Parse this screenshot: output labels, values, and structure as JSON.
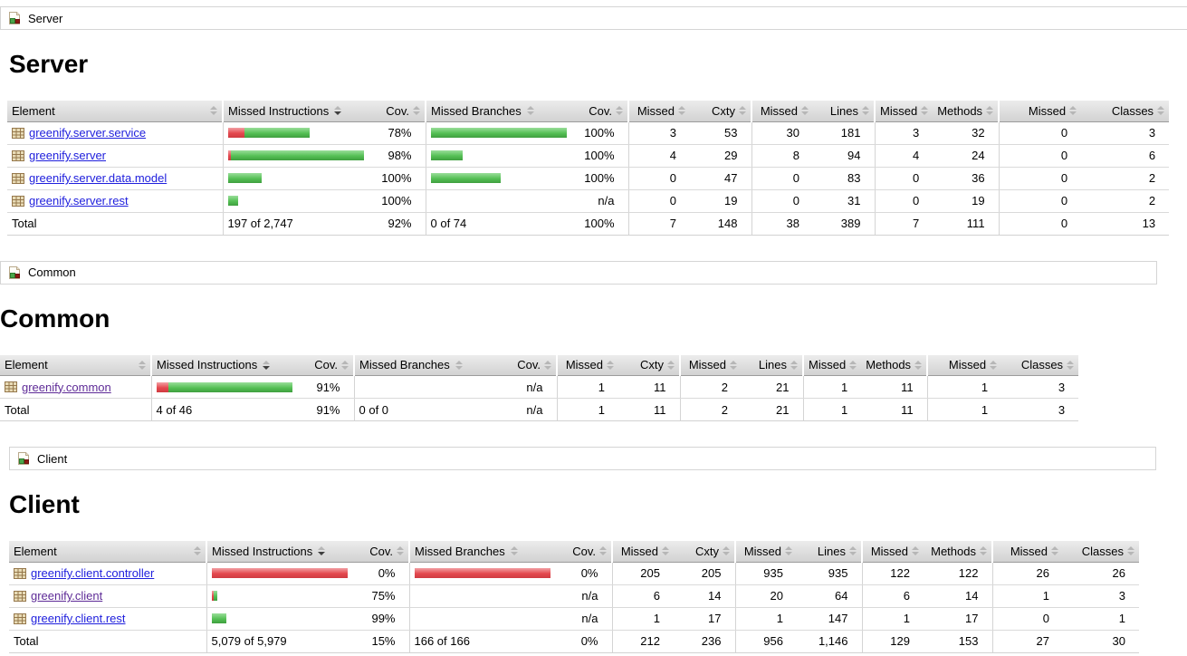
{
  "colors": {
    "link": "#2020dd",
    "link_visited": "#5e2b97",
    "bar_green": "#55c055",
    "bar_red": "#e4484e",
    "header_bg": "#dcdcdc"
  },
  "sections": [
    {
      "id": "server",
      "breadcrumb": "Server",
      "title": "Server",
      "headers": [
        "Element",
        "Missed Instructions",
        "Cov.",
        "Missed Branches",
        "Cov.",
        "Missed",
        "Cxty",
        "Missed",
        "Lines",
        "Missed",
        "Methods",
        "Missed",
        "Classes"
      ],
      "sorted_header_index": 1,
      "sort_direction": "desc",
      "rows": [
        {
          "element": "greenify.server.service",
          "visited": false,
          "instr_bar": {
            "red": 18,
            "green": 72
          },
          "instr_cov": "78%",
          "branch_bar": {
            "red": 0,
            "green": 150
          },
          "branch_cov": "100%",
          "cells": [
            "3",
            "53",
            "30",
            "181",
            "3",
            "32",
            "0",
            "3"
          ]
        },
        {
          "element": "greenify.server",
          "visited": false,
          "instr_bar": {
            "red": 3,
            "green": 147
          },
          "instr_cov": "98%",
          "branch_bar": {
            "red": 0,
            "green": 35
          },
          "branch_cov": "100%",
          "cells": [
            "4",
            "29",
            "8",
            "94",
            "4",
            "24",
            "0",
            "6"
          ]
        },
        {
          "element": "greenify.server.data.model",
          "visited": false,
          "instr_bar": {
            "red": 0,
            "green": 37
          },
          "instr_cov": "100%",
          "branch_bar": {
            "red": 0,
            "green": 77
          },
          "branch_cov": "100%",
          "cells": [
            "0",
            "47",
            "0",
            "83",
            "0",
            "36",
            "0",
            "2"
          ]
        },
        {
          "element": "greenify.server.rest",
          "visited": false,
          "instr_bar": {
            "red": 0,
            "green": 11
          },
          "instr_cov": "100%",
          "branch_bar": {
            "red": 0,
            "green": 0
          },
          "branch_cov": "n/a",
          "cells": [
            "0",
            "19",
            "0",
            "31",
            "0",
            "19",
            "0",
            "2"
          ]
        }
      ],
      "total": {
        "label": "Total",
        "instr": "197 of 2,747",
        "instr_cov": "92%",
        "branch": "0 of 74",
        "branch_cov": "100%",
        "cells": [
          "7",
          "148",
          "38",
          "389",
          "7",
          "111",
          "0",
          "13"
        ]
      }
    },
    {
      "id": "common",
      "breadcrumb": "Common",
      "title": "Common",
      "headers": [
        "Element",
        "Missed Instructions",
        "Cov.",
        "Missed Branches",
        "Cov.",
        "Missed",
        "Cxty",
        "Missed",
        "Lines",
        "Missed",
        "Methods",
        "Missed",
        "Classes"
      ],
      "sorted_header_index": 1,
      "sort_direction": "desc",
      "rows": [
        {
          "element": "greenify.common",
          "visited": true,
          "instr_bar": {
            "red": 13,
            "green": 137
          },
          "instr_cov": "91%",
          "branch_bar": {
            "red": 0,
            "green": 0
          },
          "branch_cov": "n/a",
          "cells": [
            "1",
            "11",
            "2",
            "21",
            "1",
            "11",
            "1",
            "3"
          ]
        }
      ],
      "total": {
        "label": "Total",
        "instr": "4 of 46",
        "instr_cov": "91%",
        "branch": "0 of 0",
        "branch_cov": "n/a",
        "cells": [
          "1",
          "11",
          "2",
          "21",
          "1",
          "11",
          "1",
          "3"
        ]
      }
    },
    {
      "id": "client",
      "breadcrumb": "Client",
      "title": "Client",
      "headers": [
        "Element",
        "Missed Instructions",
        "Cov.",
        "Missed Branches",
        "Cov.",
        "Missed",
        "Cxty",
        "Missed",
        "Lines",
        "Missed",
        "Methods",
        "Missed",
        "Classes"
      ],
      "sorted_header_index": 1,
      "sort_direction": "desc",
      "rows": [
        {
          "element": "greenify.client.controller",
          "visited": false,
          "instr_bar": {
            "red": 150,
            "green": 0
          },
          "instr_cov": "0%",
          "branch_bar": {
            "red": 150,
            "green": 0
          },
          "branch_cov": "0%",
          "cells": [
            "205",
            "205",
            "935",
            "935",
            "122",
            "122",
            "26",
            "26"
          ]
        },
        {
          "element": "greenify.client",
          "visited": true,
          "instr_bar": {
            "red": 2,
            "green": 4
          },
          "instr_cov": "75%",
          "branch_bar": {
            "red": 0,
            "green": 0
          },
          "branch_cov": "n/a",
          "cells": [
            "6",
            "14",
            "20",
            "64",
            "6",
            "14",
            "1",
            "3"
          ]
        },
        {
          "element": "greenify.client.rest",
          "visited": false,
          "instr_bar": {
            "red": 0,
            "green": 16
          },
          "instr_cov": "99%",
          "branch_bar": {
            "red": 0,
            "green": 0
          },
          "branch_cov": "n/a",
          "cells": [
            "1",
            "17",
            "1",
            "147",
            "1",
            "17",
            "0",
            "1"
          ]
        }
      ],
      "total": {
        "label": "Total",
        "instr": "5,079 of 5,979",
        "instr_cov": "15%",
        "branch": "166 of 166",
        "branch_cov": "0%",
        "cells": [
          "212",
          "236",
          "956",
          "1,146",
          "129",
          "153",
          "27",
          "30"
        ]
      }
    }
  ]
}
